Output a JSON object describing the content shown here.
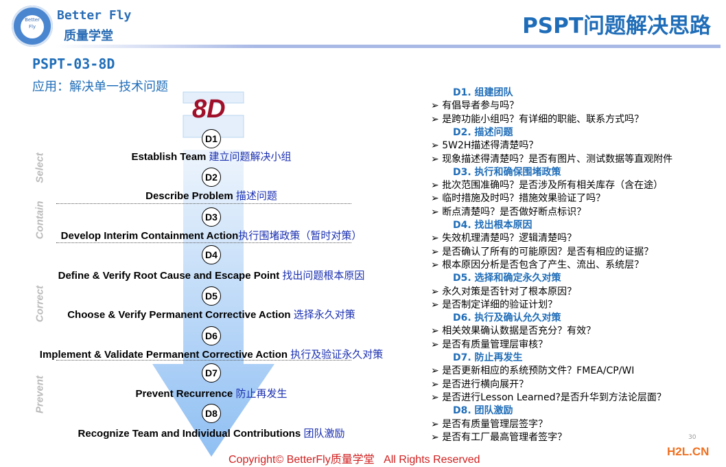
{
  "brand": {
    "en": "Better Fly",
    "cn": "质量学堂",
    "logo_text": "Better Fly"
  },
  "title": "PSPT问题解决思路",
  "code": "PSPT-03-8D",
  "subtitle": "应用：解决单一技术问题",
  "diagram": {
    "heading": "8D",
    "phases": [
      "Select",
      "Contain",
      "Correct",
      "Prevent"
    ],
    "steps": [
      {
        "id": "D1",
        "en": "Establish Team ",
        "cn": "建立问题解决小组"
      },
      {
        "id": "D2",
        "en": "Describe Problem ",
        "cn": "描述问题"
      },
      {
        "id": "D3",
        "en": "Develop Interim Containment Action",
        "cn": "执行围堵政策（暂时对策）"
      },
      {
        "id": "D4",
        "en": "Define & Verify Root Cause and Escape Point ",
        "cn": "找出问题根本原因"
      },
      {
        "id": "D5",
        "en": "Choose & Verify Permanent Corrective Action ",
        "cn": "选择永久对策"
      },
      {
        "id": "D6",
        "en": "Implement & Validate Permanent Corrective Action ",
        "cn": "执行及验证永久对策"
      },
      {
        "id": "D7",
        "en": "Prevent Recurrence ",
        "cn": "防止再发生"
      },
      {
        "id": "D8",
        "en": "Recognize Team and Individual Contributions ",
        "cn": "团队激励"
      }
    ]
  },
  "checklist": [
    {
      "heading": "D1. 组建团队",
      "items": [
        "有倡导者参与吗？",
        "是跨功能小组吗？有详细的职能、联系方式吗？"
      ]
    },
    {
      "heading": "D2. 描述问题",
      "items": [
        "5W2H描述得清楚吗？",
        "现象描述得清楚吗？是否有图片、测试数据等直观附件"
      ]
    },
    {
      "heading": "D3. 执行和确保围堵政策",
      "items": [
        "批次范围准确吗？是否涉及所有相关库存（含在途）",
        "临时措施及时吗？措施效果验证了吗？",
        "断点清楚吗？是否做好断点标识？"
      ]
    },
    {
      "heading": "D4. 找出根本原因",
      "items": [
        "失效机理清楚吗？逻辑清楚吗？",
        "是否确认了所有的可能原因？是否有相应的证据？",
        "根本原因分析是否包含了产生、流出、系统层？"
      ]
    },
    {
      "heading": "D5. 选择和确定永久对策",
      "items": [
        "永久对策是否针对了根本原因？",
        "是否制定详细的验证计划？"
      ]
    },
    {
      "heading": "D6. 执行及确认允久对策",
      "items": [
        "相关效果确认数据是否充分？有效？",
        "是否有质量管理层审核？"
      ]
    },
    {
      "heading": "D7. 防止再发生",
      "items": [
        "是否更新相应的系统预防文件？FMEA/CP/WI",
        "是否进行横向展开？",
        "是否进行Lesson Learned?是否升华到方法论层面？"
      ]
    },
    {
      "heading": "D8. 团队激励",
      "items": [
        " 是否有质量管理层签字？",
        " 是否有工厂最高管理者签字？"
      ]
    }
  ],
  "footer": {
    "copyright": "Copyright© BetterFly质量学堂   All Rights Reserved",
    "page": "30",
    "watermark": "H2L.CN"
  },
  "colors": {
    "accent": "#1f6db8",
    "arrow": "#9cc6f5",
    "heading_8d": "#a0102a",
    "copyright": "#d02020",
    "watermark": "#f07020"
  }
}
